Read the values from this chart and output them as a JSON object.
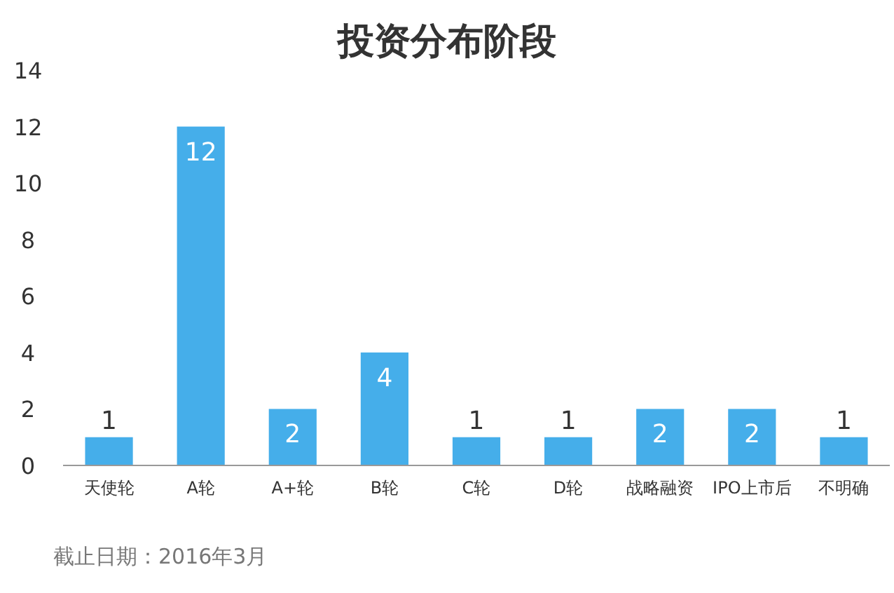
{
  "chart_data": {
    "type": "bar",
    "title": "投资分布阶段",
    "categories": [
      "天使轮",
      "A轮",
      "A+轮",
      "B轮",
      "C轮",
      "D轮",
      "战略融资",
      "IPO上市后",
      "不明确"
    ],
    "values": [
      1,
      12,
      2,
      4,
      1,
      1,
      2,
      2,
      1
    ],
    "color": "#45aeea",
    "ylim": [
      0,
      14
    ],
    "yticks": [
      0,
      2,
      4,
      6,
      8,
      10,
      12,
      14
    ],
    "data_labels": true,
    "annotations": [
      "截止日期：2016年3月"
    ]
  }
}
